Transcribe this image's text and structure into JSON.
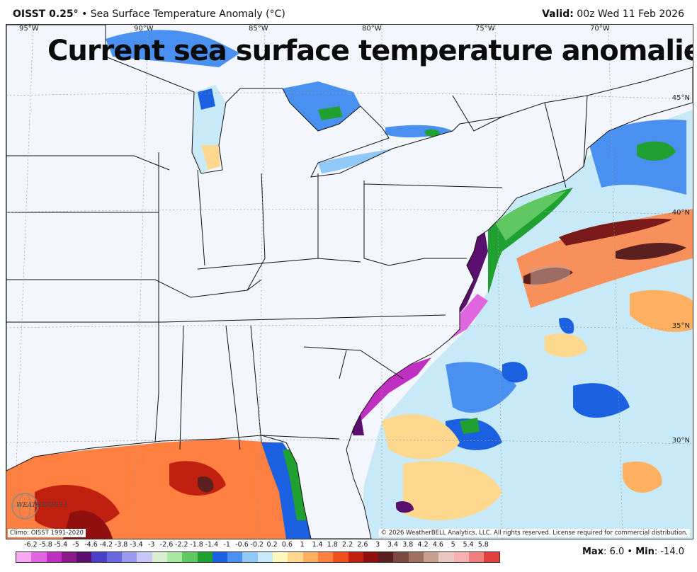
{
  "header": {
    "product": "OISST 0.25",
    "degree": "°",
    "bullet": "•",
    "field": "Sea Surface Temperature Anomaly (",
    "unit": "°C",
    "field_close": ")",
    "valid_label": "Valid:",
    "valid_time": "00z Wed 11 Feb 2026"
  },
  "overlay_title": "Current sea surface temperature anomalies",
  "lon_labels": [
    "95°W",
    "90°W",
    "85°W",
    "80°W",
    "75°W",
    "70°W"
  ],
  "lat_labels": [
    "45°N",
    "40°N",
    "35°N",
    "30°N"
  ],
  "climo": "Climo: OISST 1991-2020",
  "copyright": "© 2026 WeatherBELL Analytics, LLC. All rights reserved. License required for commercial distribution.",
  "logo_text": "WEATHERBELL",
  "legend": {
    "labels": [
      "-6.2",
      "-5.8",
      "-5.4",
      "-5",
      "-4.6",
      "-4.2",
      "-3.8",
      "-3.4",
      "-3",
      "-2.6",
      "-2.2",
      "-1.8",
      "-1.4",
      "-1",
      "-0.6",
      "-0.2",
      "0.2",
      "0.6",
      "1",
      "1.4",
      "1.8",
      "2.2",
      "2.6",
      "3",
      "3.4",
      "3.8",
      "4.2",
      "4.6",
      "5",
      "5.4",
      "5.8"
    ],
    "colors": [
      "#f7a8f0",
      "#e066e0",
      "#c030c0",
      "#8a1a8a",
      "#5a0f6e",
      "#4a3fc8",
      "#6a6ae0",
      "#9a9af0",
      "#c8c8f8",
      "#d8f0d0",
      "#a8e8a0",
      "#60c860",
      "#20a030",
      "#1a60e0",
      "#4a90f0",
      "#90c8f8",
      "#c8eaf8",
      "#fff8c0",
      "#ffd890",
      "#ffb060",
      "#ff8040",
      "#f05020",
      "#c02010",
      "#901010",
      "#5a2020",
      "#7a4a40",
      "#a07060",
      "#c8a090",
      "#e8c8c0",
      "#f8b0b0",
      "#f08080",
      "#e04040"
    ]
  },
  "max_label": "Max",
  "max_value": "6.0",
  "min_label": "Min",
  "min_value": "-14.0",
  "colors": {
    "land": "#f3f6fc",
    "border": "#111111",
    "grid": "#9a9a9a"
  }
}
